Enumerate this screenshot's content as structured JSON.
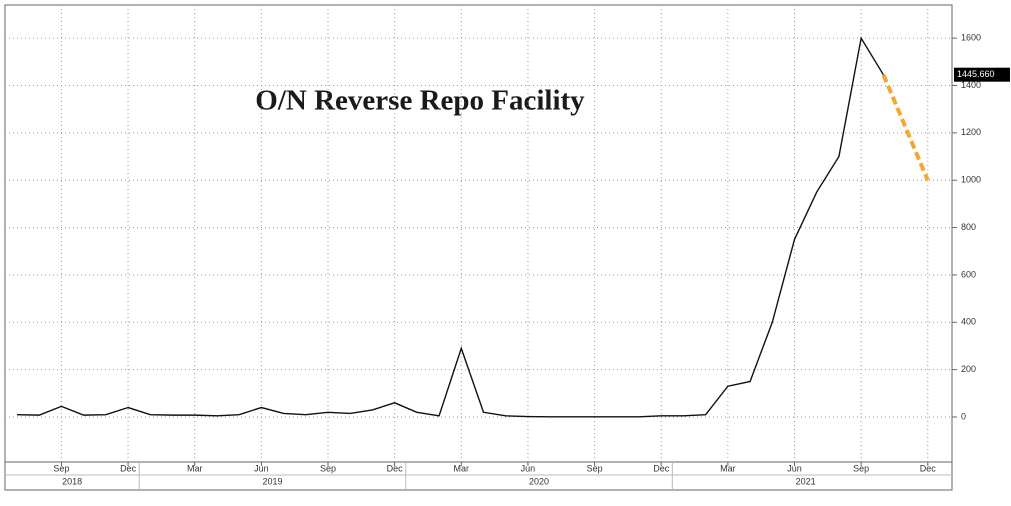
{
  "chart_data": {
    "type": "line",
    "title": "O/N Reverse Repo Facility",
    "x": [
      "2018-07",
      "2018-08",
      "2018-09",
      "2018-10",
      "2018-11",
      "2018-12",
      "2019-01",
      "2019-02",
      "2019-03",
      "2019-04",
      "2019-05",
      "2019-06",
      "2019-07",
      "2019-08",
      "2019-09",
      "2019-10",
      "2019-11",
      "2019-12",
      "2020-01",
      "2020-02",
      "2020-03",
      "2020-04",
      "2020-05",
      "2020-06",
      "2020-07",
      "2020-08",
      "2020-09",
      "2020-10",
      "2020-11",
      "2020-12",
      "2021-01",
      "2021-02",
      "2021-03",
      "2021-04",
      "2021-05",
      "2021-06",
      "2021-07",
      "2021-08",
      "2021-09",
      "2021-10"
    ],
    "series": [
      {
        "color": "#111111",
        "values": [
          10,
          8,
          45,
          8,
          10,
          40,
          10,
          8,
          8,
          5,
          10,
          40,
          15,
          10,
          20,
          15,
          30,
          60,
          20,
          5,
          290,
          20,
          5,
          2,
          1,
          1,
          1,
          1,
          1,
          5,
          5,
          10,
          130,
          150,
          400,
          750,
          950,
          1100,
          1600,
          1445.66
        ],
        "value_labels": [
          null,
          null,
          null,
          null,
          null,
          null,
          null,
          null,
          null,
          null,
          null,
          null,
          null,
          null,
          null,
          null,
          null,
          null,
          null,
          null,
          null,
          null,
          null,
          null,
          null,
          null,
          null,
          null,
          null,
          null,
          null,
          null,
          null,
          null,
          null,
          null,
          null,
          null,
          null,
          "1445.660"
        ]
      },
      {
        "color": "#f0a830",
        "dashed": true,
        "x": [
          "2021-10",
          "2021-12"
        ],
        "values": [
          1445.66,
          1000
        ]
      }
    ],
    "xlim": [
      "2018-07",
      "2022-01"
    ],
    "xticks": [
      {
        "value": "2018-09",
        "label": "Sep"
      },
      {
        "value": "2018-12",
        "label": "Dec"
      },
      {
        "value": "2019-03",
        "label": "Mar"
      },
      {
        "value": "2019-06",
        "label": "Jun"
      },
      {
        "value": "2019-09",
        "label": "Sep"
      },
      {
        "value": "2019-12",
        "label": "Dec"
      },
      {
        "value": "2020-03",
        "label": "Mar"
      },
      {
        "value": "2020-06",
        "label": "Jun"
      },
      {
        "value": "2020-09",
        "label": "Sep"
      },
      {
        "value": "2020-12",
        "label": "Dec"
      },
      {
        "value": "2021-03",
        "label": "Mar"
      },
      {
        "value": "2021-06",
        "label": "Jun"
      },
      {
        "value": "2021-09",
        "label": "Sep"
      },
      {
        "value": "2021-12",
        "label": "Dec"
      }
    ],
    "years": [
      "2018",
      "2019",
      "2020",
      "2021"
    ],
    "ylim": [
      -190,
      1740
    ],
    "yticks": [
      0,
      200,
      400,
      600,
      800,
      1000,
      1200,
      1400,
      1600
    ],
    "grid": true
  }
}
